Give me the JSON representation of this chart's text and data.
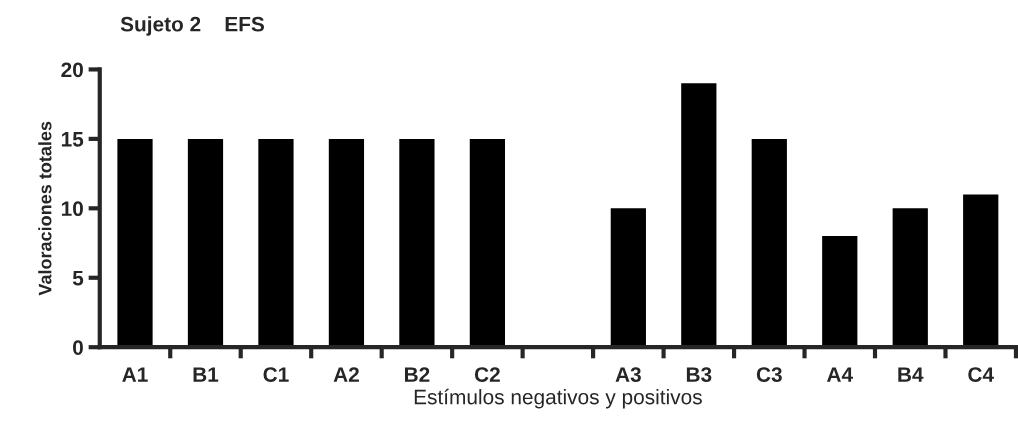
{
  "chart_data": {
    "type": "bar",
    "title": "Sujeto 2    EFS",
    "xlabel": "Estímulos negativos y positivos",
    "ylabel": "Valoraciones totales",
    "categories": [
      "A1",
      "B1",
      "C1",
      "A2",
      "B2",
      "C2",
      null,
      "A3",
      "B3",
      "C3",
      "A4",
      "B4",
      "C4"
    ],
    "values": [
      15,
      15,
      15,
      15,
      15,
      15,
      null,
      10,
      19,
      15,
      8,
      10,
      11
    ],
    "color": "#000000",
    "ylim": [
      0,
      20
    ],
    "yticks": [
      0,
      5,
      10,
      15,
      20
    ],
    "grid": false,
    "legend": false
  }
}
